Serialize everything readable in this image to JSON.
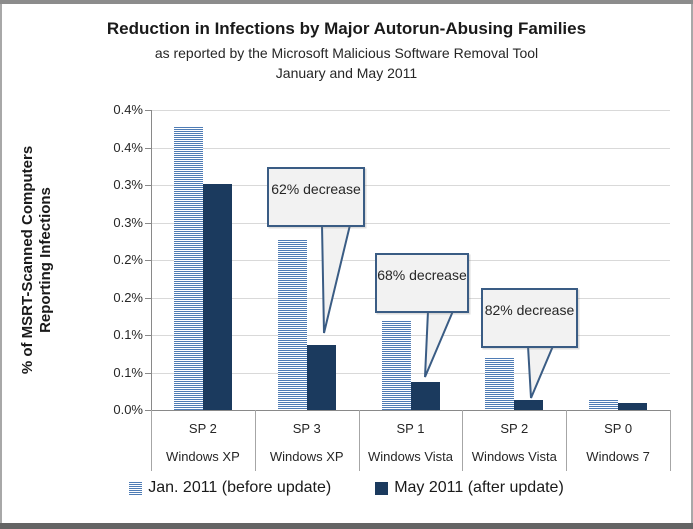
{
  "chart_data": {
    "type": "bar",
    "title": "Reduction in Infections by Major Autorun-Abusing Families",
    "subtitle_line1": "as reported by the Microsoft Malicious Software Removal Tool",
    "subtitle_line2": "January and May 2011",
    "ylabel_lines": [
      "% of MSRT-Scanned Computers",
      "Reporting Infections"
    ],
    "ylim": [
      0,
      0.4
    ],
    "ytick_step": 0.05,
    "ytick_labels_top_to_bottom": [
      "0.4%",
      "0.4%",
      "0.3%",
      "0.3%",
      "0.2%",
      "0.2%",
      "0.1%",
      "0.1%",
      "0.0%"
    ],
    "grid": true,
    "legend_position": "bottom",
    "categories": [
      {
        "sp": "SP 2",
        "os": "Windows XP"
      },
      {
        "sp": "SP 3",
        "os": "Windows XP"
      },
      {
        "sp": "SP 1",
        "os": "Windows Vista"
      },
      {
        "sp": "SP 2",
        "os": "Windows Vista"
      },
      {
        "sp": "SP 0",
        "os": "Windows 7"
      }
    ],
    "series": [
      {
        "name": "Jan. 2011 (before update)",
        "style": "striped",
        "values": [
          0.377,
          0.227,
          0.118,
          0.069,
          0.014
        ]
      },
      {
        "name": "May 2011 (after update)",
        "style": "solid",
        "values": [
          0.301,
          0.087,
          0.038,
          0.013,
          0.01
        ]
      }
    ],
    "callouts": [
      {
        "text": "62% decrease",
        "target_series": "May 2011 (after update)",
        "target_category": "Windows XP SP 3"
      },
      {
        "text": "68% decrease",
        "target_series": "May 2011 (after update)",
        "target_category": "Windows Vista SP 1"
      },
      {
        "text": "82% decrease",
        "target_series": "May 2011 (after update)",
        "target_category": "Windows Vista SP 2"
      }
    ],
    "colors": {
      "jan_stripe": "#4f7cb5",
      "may_solid": "#1b3a5e",
      "gridline": "#d9d9d9",
      "axis": "#898989",
      "separator": "#a6a6a6",
      "callout_bg": "#f2f2f2",
      "callout_border": "#3a5c84"
    }
  }
}
